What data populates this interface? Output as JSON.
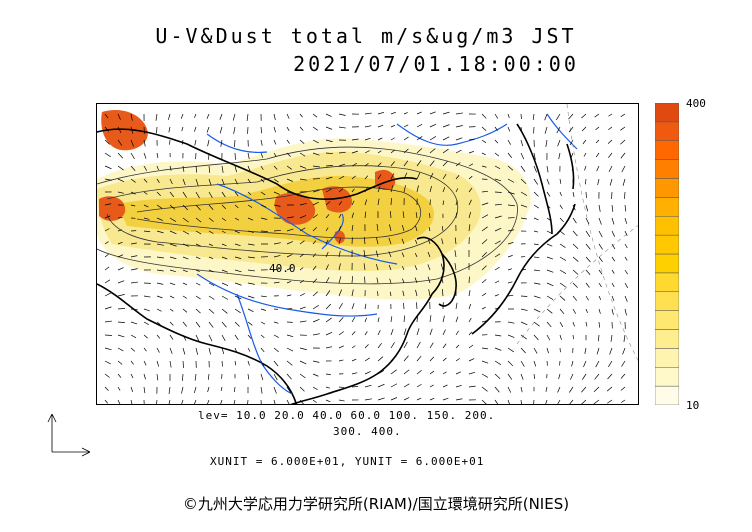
{
  "header": {
    "title": "U-V&Dust total m/s&ug/m3 JST",
    "datetime": "2021/07/01.18:00:00"
  },
  "map": {
    "contour_label": "40.0",
    "coast_color": "#000000",
    "river_color": "#1a5ce6",
    "dust_colors": {
      "low": "#fdf7c8",
      "mid": "#f6e06a",
      "high": "#f0c800",
      "very_high": "#e85a1a"
    }
  },
  "colorbar": {
    "max_label": "400",
    "min_label": "10",
    "colors": [
      "#fffde8",
      "#fff8c8",
      "#fff3b0",
      "#ffee90",
      "#ffe870",
      "#ffe050",
      "#ffd830",
      "#ffd000",
      "#ffc800",
      "#ffc000",
      "#ffb000",
      "#ff9800",
      "#ff8000",
      "#ff6800",
      "#f05a10",
      "#e04a10"
    ]
  },
  "footer": {
    "levels_line1": "lev= 10.0 20.0 40.0 60.0 100. 150. 200.",
    "levels_line2": "300. 400.",
    "units": "XUNIT = 6.000E+01, YUNIT = 6.000E+01",
    "copyright": "©九州大学応用力学研究所(RIAM)/国立環境研究所(NIES)"
  }
}
